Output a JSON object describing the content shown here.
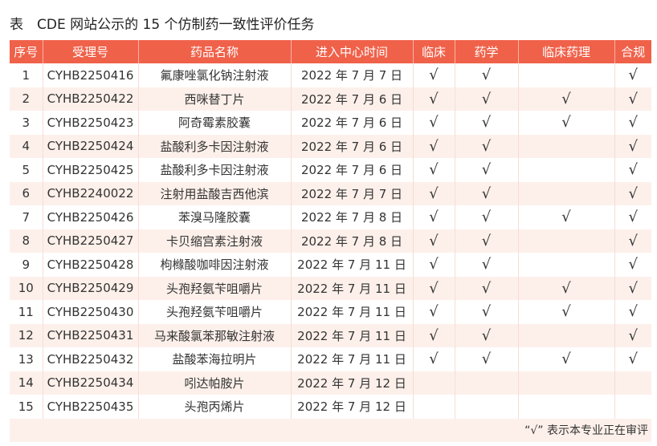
{
  "title": "表　CDE 网站公示的 15 个仿制药一致性评价任务",
  "colors": {
    "header": "#f0614a",
    "alt_row": "#fdf0ea"
  },
  "columns": [
    "序号",
    "受理号",
    "药品名称",
    "进入中心时间",
    "临床",
    "药学",
    "临床药理",
    "合规"
  ],
  "check_mark": "√",
  "rows": [
    [
      "1",
      "CYHB2250416",
      "氟康唑氯化钠注射液",
      "2022 年 7 月 7 日",
      true,
      true,
      false,
      true
    ],
    [
      "2",
      "CYHB2250422",
      "西咪替丁片",
      "2022 年 7 月 6 日",
      true,
      true,
      true,
      true
    ],
    [
      "3",
      "CYHB2250423",
      "阿奇霉素胶囊",
      "2022 年 7 月 6 日",
      true,
      true,
      true,
      true
    ],
    [
      "4",
      "CYHB2250424",
      "盐酸利多卡因注射液",
      "2022 年 7 月 6 日",
      true,
      true,
      false,
      true
    ],
    [
      "5",
      "CYHB2250425",
      "盐酸利多卡因注射液",
      "2022 年 7 月 6 日",
      true,
      true,
      false,
      true
    ],
    [
      "6",
      "CYHB2240022",
      "注射用盐酸吉西他滨",
      "2022 年 7 月 7 日",
      true,
      true,
      false,
      true
    ],
    [
      "7",
      "CYHB2250426",
      "苯溴马隆胶囊",
      "2022 年 7 月 8 日",
      true,
      true,
      true,
      true
    ],
    [
      "8",
      "CYHB2250427",
      "卡贝缩宫素注射液",
      "2022 年 7 月 8 日",
      true,
      true,
      false,
      true
    ],
    [
      "9",
      "CYHB2250428",
      "枸橼酸咖啡因注射液",
      "2022 年 7 月 11 日",
      true,
      true,
      false,
      true
    ],
    [
      "10",
      "CYHB2250429",
      "头孢羟氨苄咀嚼片",
      "2022 年 7 月 11 日",
      true,
      true,
      true,
      true
    ],
    [
      "11",
      "CYHB2250430",
      "头孢羟氨苄咀嚼片",
      "2022 年 7 月 11 日",
      true,
      true,
      true,
      true
    ],
    [
      "12",
      "CYHB2250431",
      "马来酸氯苯那敏注射液",
      "2022 年 7 月 11 日",
      true,
      true,
      false,
      true
    ],
    [
      "13",
      "CYHB2250432",
      "盐酸苯海拉明片",
      "2022 年 7 月 11 日",
      true,
      true,
      true,
      true
    ],
    [
      "14",
      "CYHB2250434",
      "吲达帕胺片",
      "2022 年 7 月 12 日",
      false,
      false,
      false,
      false
    ],
    [
      "15",
      "CYHB2250435",
      "头孢丙烯片",
      "2022 年 7 月 12 日",
      false,
      false,
      false,
      false
    ]
  ],
  "footnote": "“√” 表示本专业正在审评"
}
